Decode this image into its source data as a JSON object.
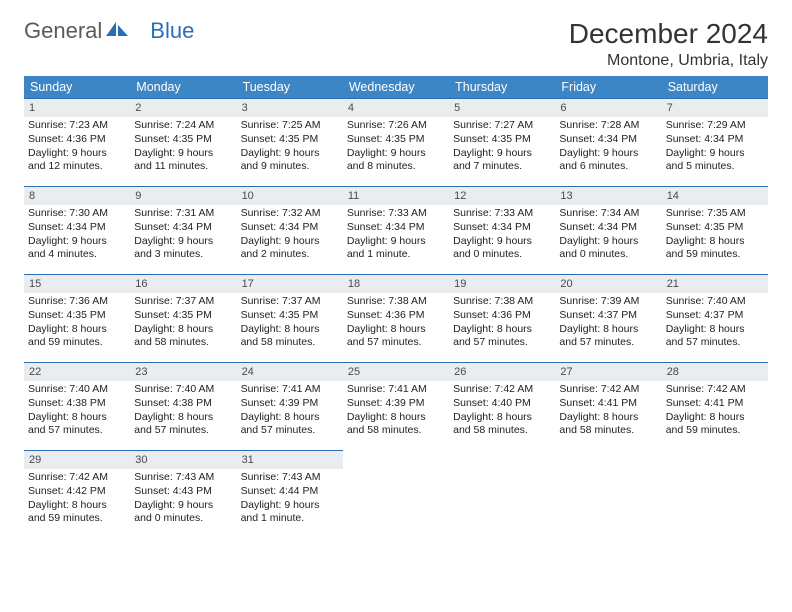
{
  "brand": {
    "part1": "General",
    "part2": "Blue"
  },
  "title": "December 2024",
  "location": "Montone, Umbria, Italy",
  "colors": {
    "header_bg": "#3d86c6",
    "header_text": "#ffffff",
    "daynum_bg": "#e9edf0",
    "rule": "#2a6fb5",
    "brand_gray": "#5a5a5a",
    "brand_blue": "#2a6fb5"
  },
  "fonts": {
    "title_pt": 28,
    "location_pt": 16,
    "dayhead_pt": 12.5,
    "cell_pt": 10.5
  },
  "day_headers": [
    "Sunday",
    "Monday",
    "Tuesday",
    "Wednesday",
    "Thursday",
    "Friday",
    "Saturday"
  ],
  "weeks": [
    [
      {
        "n": "1",
        "sunrise": "Sunrise: 7:23 AM",
        "sunset": "Sunset: 4:36 PM",
        "day1": "Daylight: 9 hours",
        "day2": "and 12 minutes."
      },
      {
        "n": "2",
        "sunrise": "Sunrise: 7:24 AM",
        "sunset": "Sunset: 4:35 PM",
        "day1": "Daylight: 9 hours",
        "day2": "and 11 minutes."
      },
      {
        "n": "3",
        "sunrise": "Sunrise: 7:25 AM",
        "sunset": "Sunset: 4:35 PM",
        "day1": "Daylight: 9 hours",
        "day2": "and 9 minutes."
      },
      {
        "n": "4",
        "sunrise": "Sunrise: 7:26 AM",
        "sunset": "Sunset: 4:35 PM",
        "day1": "Daylight: 9 hours",
        "day2": "and 8 minutes."
      },
      {
        "n": "5",
        "sunrise": "Sunrise: 7:27 AM",
        "sunset": "Sunset: 4:35 PM",
        "day1": "Daylight: 9 hours",
        "day2": "and 7 minutes."
      },
      {
        "n": "6",
        "sunrise": "Sunrise: 7:28 AM",
        "sunset": "Sunset: 4:34 PM",
        "day1": "Daylight: 9 hours",
        "day2": "and 6 minutes."
      },
      {
        "n": "7",
        "sunrise": "Sunrise: 7:29 AM",
        "sunset": "Sunset: 4:34 PM",
        "day1": "Daylight: 9 hours",
        "day2": "and 5 minutes."
      }
    ],
    [
      {
        "n": "8",
        "sunrise": "Sunrise: 7:30 AM",
        "sunset": "Sunset: 4:34 PM",
        "day1": "Daylight: 9 hours",
        "day2": "and 4 minutes."
      },
      {
        "n": "9",
        "sunrise": "Sunrise: 7:31 AM",
        "sunset": "Sunset: 4:34 PM",
        "day1": "Daylight: 9 hours",
        "day2": "and 3 minutes."
      },
      {
        "n": "10",
        "sunrise": "Sunrise: 7:32 AM",
        "sunset": "Sunset: 4:34 PM",
        "day1": "Daylight: 9 hours",
        "day2": "and 2 minutes."
      },
      {
        "n": "11",
        "sunrise": "Sunrise: 7:33 AM",
        "sunset": "Sunset: 4:34 PM",
        "day1": "Daylight: 9 hours",
        "day2": "and 1 minute."
      },
      {
        "n": "12",
        "sunrise": "Sunrise: 7:33 AM",
        "sunset": "Sunset: 4:34 PM",
        "day1": "Daylight: 9 hours",
        "day2": "and 0 minutes."
      },
      {
        "n": "13",
        "sunrise": "Sunrise: 7:34 AM",
        "sunset": "Sunset: 4:34 PM",
        "day1": "Daylight: 9 hours",
        "day2": "and 0 minutes."
      },
      {
        "n": "14",
        "sunrise": "Sunrise: 7:35 AM",
        "sunset": "Sunset: 4:35 PM",
        "day1": "Daylight: 8 hours",
        "day2": "and 59 minutes."
      }
    ],
    [
      {
        "n": "15",
        "sunrise": "Sunrise: 7:36 AM",
        "sunset": "Sunset: 4:35 PM",
        "day1": "Daylight: 8 hours",
        "day2": "and 59 minutes."
      },
      {
        "n": "16",
        "sunrise": "Sunrise: 7:37 AM",
        "sunset": "Sunset: 4:35 PM",
        "day1": "Daylight: 8 hours",
        "day2": "and 58 minutes."
      },
      {
        "n": "17",
        "sunrise": "Sunrise: 7:37 AM",
        "sunset": "Sunset: 4:35 PM",
        "day1": "Daylight: 8 hours",
        "day2": "and 58 minutes."
      },
      {
        "n": "18",
        "sunrise": "Sunrise: 7:38 AM",
        "sunset": "Sunset: 4:36 PM",
        "day1": "Daylight: 8 hours",
        "day2": "and 57 minutes."
      },
      {
        "n": "19",
        "sunrise": "Sunrise: 7:38 AM",
        "sunset": "Sunset: 4:36 PM",
        "day1": "Daylight: 8 hours",
        "day2": "and 57 minutes."
      },
      {
        "n": "20",
        "sunrise": "Sunrise: 7:39 AM",
        "sunset": "Sunset: 4:37 PM",
        "day1": "Daylight: 8 hours",
        "day2": "and 57 minutes."
      },
      {
        "n": "21",
        "sunrise": "Sunrise: 7:40 AM",
        "sunset": "Sunset: 4:37 PM",
        "day1": "Daylight: 8 hours",
        "day2": "and 57 minutes."
      }
    ],
    [
      {
        "n": "22",
        "sunrise": "Sunrise: 7:40 AM",
        "sunset": "Sunset: 4:38 PM",
        "day1": "Daylight: 8 hours",
        "day2": "and 57 minutes."
      },
      {
        "n": "23",
        "sunrise": "Sunrise: 7:40 AM",
        "sunset": "Sunset: 4:38 PM",
        "day1": "Daylight: 8 hours",
        "day2": "and 57 minutes."
      },
      {
        "n": "24",
        "sunrise": "Sunrise: 7:41 AM",
        "sunset": "Sunset: 4:39 PM",
        "day1": "Daylight: 8 hours",
        "day2": "and 57 minutes."
      },
      {
        "n": "25",
        "sunrise": "Sunrise: 7:41 AM",
        "sunset": "Sunset: 4:39 PM",
        "day1": "Daylight: 8 hours",
        "day2": "and 58 minutes."
      },
      {
        "n": "26",
        "sunrise": "Sunrise: 7:42 AM",
        "sunset": "Sunset: 4:40 PM",
        "day1": "Daylight: 8 hours",
        "day2": "and 58 minutes."
      },
      {
        "n": "27",
        "sunrise": "Sunrise: 7:42 AM",
        "sunset": "Sunset: 4:41 PM",
        "day1": "Daylight: 8 hours",
        "day2": "and 58 minutes."
      },
      {
        "n": "28",
        "sunrise": "Sunrise: 7:42 AM",
        "sunset": "Sunset: 4:41 PM",
        "day1": "Daylight: 8 hours",
        "day2": "and 59 minutes."
      }
    ],
    [
      {
        "n": "29",
        "sunrise": "Sunrise: 7:42 AM",
        "sunset": "Sunset: 4:42 PM",
        "day1": "Daylight: 8 hours",
        "day2": "and 59 minutes."
      },
      {
        "n": "30",
        "sunrise": "Sunrise: 7:43 AM",
        "sunset": "Sunset: 4:43 PM",
        "day1": "Daylight: 9 hours",
        "day2": "and 0 minutes."
      },
      {
        "n": "31",
        "sunrise": "Sunrise: 7:43 AM",
        "sunset": "Sunset: 4:44 PM",
        "day1": "Daylight: 9 hours",
        "day2": "and 1 minute."
      },
      {
        "empty": true
      },
      {
        "empty": true
      },
      {
        "empty": true
      },
      {
        "empty": true
      }
    ]
  ]
}
